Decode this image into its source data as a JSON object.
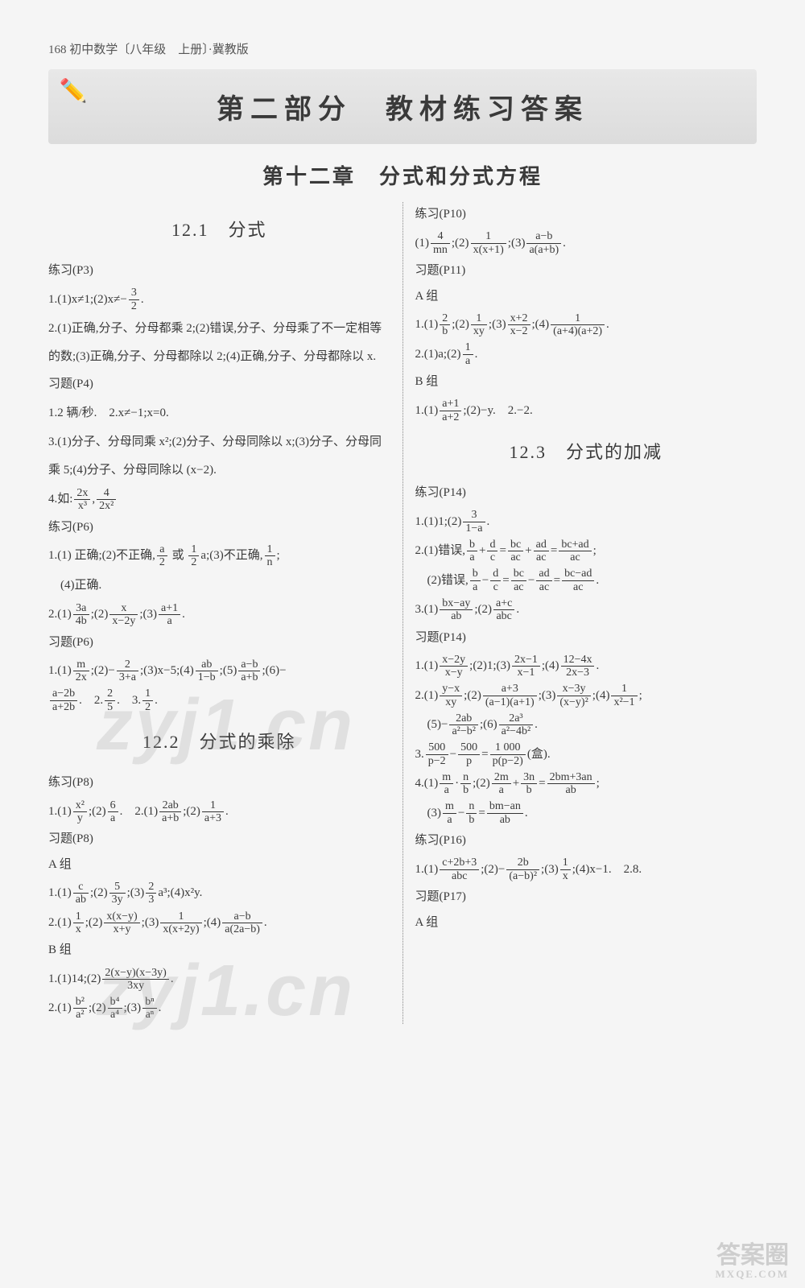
{
  "pageHeader": "168 初中数学〔八年级　上册〕·冀教版",
  "bannerTitle": "第二部分　教材练习答案",
  "chapterTitle": "第十二章　分式和分式方程",
  "sec12_1": "12.1　分式",
  "sec12_2": "12.2　分式的乘除",
  "sec12_3": "12.3　分式的加减",
  "lianxi_p3": "练习(P3)",
  "lianxi_p6": "练习(P6)",
  "lianxi_p8": "练习(P8)",
  "lianxi_p10": "练习(P10)",
  "lianxi_p14": "练习(P14)",
  "lianxi_p16": "练习(P16)",
  "xiti_p4": "习题(P4)",
  "xiti_p6": "习题(P6)",
  "xiti_p8": "习题(P8)",
  "xiti_p11": "习题(P11)",
  "xiti_p14": "习题(P14)",
  "xiti_p17": "习题(P17)",
  "groupA": "A 组",
  "groupB": "B 组",
  "l": {
    "p3_1a": "1.(1)x≠1;(2)x≠−",
    "p3_1b": ".",
    "p3_2": "2.(1)正确,分子、分母都乘 2;(2)错误,分子、分母乘了不一定相等的数;(3)正确,分子、分母都除以 2;(4)正确,分子、分母都除以 x.",
    "p4_1": "1.2 辆/秒.　2.x≠−1;x=0.",
    "p4_3": "3.(1)分子、分母同乘 x²;(2)分子、分母同除以 x;(3)分子、分母同乘 5;(4)分子、分母同除以 (x−2).",
    "p4_4a": "4.如:",
    "p6a_1a": "1.(1) 正确;(2)不正确,",
    "p6a_1b": " 或 ",
    "p6a_1c": "a;(3)不正确,",
    "p6a_1d": ";",
    "p6a_1e": "　(4)正确.",
    "p6a_2a": "2.(1)",
    "p6a_2b": ";(2)",
    "p6a_2c": ";(3)",
    "p6a_2d": ".",
    "p6b_1a": "1.(1)",
    "p6b_1b": ";(2)−",
    "p6b_1c": ";(3)x−5;(4)",
    "p6b_1d": ";(5)",
    "p6b_1e": ";(6)−",
    "p6b_2a": ".　2.",
    "p6b_2b": ".　3.",
    "p6b_2c": ".",
    "p8a_1a": "1.(1)",
    "p8a_1b": ";(2)",
    "p8a_1c": ".　2.(1)",
    "p8a_1d": ";(2)",
    "p8a_1e": ".",
    "p8b_1a": "1.(1)",
    "p8b_1b": ";(2)",
    "p8b_1c": ";(3)",
    "p8b_1d": "a³;(4)x²y.",
    "p8b_2a": "2.(1)",
    "p8b_2b": ";(2)",
    "p8b_2c": ";(3)",
    "p8b_2d": ";(4)",
    "p8b_2e": ".",
    "p8c_1a": "1.(1)14;(2)",
    "p8c_1b": ".",
    "p8c_2a": "2.(1)",
    "p8c_2b": ";(2)",
    "p8c_2c": ";(3)",
    "p8c_2d": "."
  },
  "r": {
    "p10_a": "(1)",
    "p10_b": ";(2)",
    "p10_c": ";(3)",
    "p10_d": ".",
    "p11a_1a": "1.(1)",
    "p11a_1b": ";(2)",
    "p11a_1c": ";(3)",
    "p11a_1d": ";(4)",
    "p11a_1e": ".",
    "p11a_2a": "2.(1)a;(2)",
    "p11a_2b": ".",
    "p11b_1a": "1.(1)",
    "p11b_1b": ";(2)−y.　2.−2.",
    "p14a_1a": "1.(1)1;(2)",
    "p14a_1b": ".",
    "p14a_2a": "2.(1)错误,",
    "p14a_2b": ";",
    "p14a_2c": "　(2)错误,",
    "p14a_2d": ".",
    "p14a_3a": "3.(1)",
    "p14a_3b": ";(2)",
    "p14a_3c": ".",
    "p14b_1a": "1.(1)",
    "p14b_1b": ";(2)1;(3)",
    "p14b_1c": ";(4)",
    "p14b_1d": ".",
    "p14b_2a": "2.(1)",
    "p14b_2b": ";(2)",
    "p14b_2c": ";(3)",
    "p14b_2d": ";(4)",
    "p14b_2e": ";",
    "p14b_2f": "　(5)−",
    "p14b_2g": ";(6)",
    "p14b_2h": ".",
    "p14b_3a": "3.",
    "p14b_3b": "(盒).",
    "p14b_4a": "4.(1)",
    "p14b_4b": ";(2)",
    "p14b_4c": ";",
    "p14b_4d": "　(3)",
    "p14b_4e": ".",
    "p16_1a": "1.(1)",
    "p16_1b": ";(2)−",
    "p16_1c": ";(3)",
    "p16_1d": ";(4)x−1.　2.8."
  },
  "watermark": "zyj1.cn",
  "bottomMark": "答案圈",
  "bottomUrl": "MXQE.COM",
  "colors": {
    "text": "#3a3a3a",
    "bg": "#f5f5f5",
    "banner": "#e0e0e0"
  }
}
